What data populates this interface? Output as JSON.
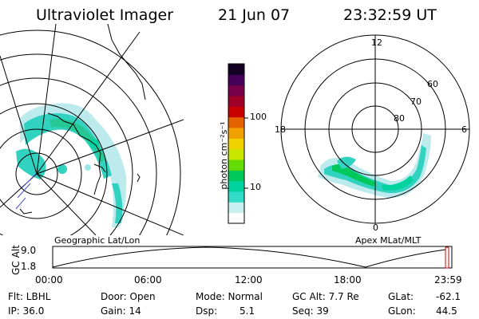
{
  "header": {
    "title": "Ultraviolet Imager",
    "date": "21 Jun 07",
    "time": "23:32:59 UT"
  },
  "geo_panel": {
    "label": "Geographic Lat/Lon"
  },
  "apex_panel": {
    "label": "Apex MLat/MLT",
    "mlt_labels": [
      "12",
      "18",
      "6",
      "0"
    ],
    "lat_labels": [
      "60",
      "70",
      "80"
    ]
  },
  "colorbar": {
    "label": "photon cm⁻²s⁻¹",
    "ticks": [
      "100",
      "10"
    ],
    "colors": [
      "#ffffff",
      "#c8f0f0",
      "#32dcc8",
      "#00d2a0",
      "#00c85a",
      "#64dc00",
      "#c8e600",
      "#f0d200",
      "#f0a000",
      "#e66400",
      "#c80000",
      "#a00028",
      "#78004b",
      "#46005a",
      "#140023"
    ]
  },
  "timeline": {
    "ylabel": "GC Alt",
    "y_ticks": [
      "9.0",
      "1.8"
    ],
    "x_ticks": [
      "00:00",
      "06:00",
      "12:00",
      "18:00",
      "23:59"
    ],
    "marker_color": "#dd0000"
  },
  "footer": {
    "flt": "Flt: LBHL",
    "ip": "IP: 36.0",
    "door": "Door: Open",
    "gain": "Gain: 14",
    "mode": "Mode: Normal",
    "dsp_label": "Dsp:",
    "dsp_value": "5.1",
    "gc_alt": "GC Alt: 7.7 Re",
    "seq": "Seq: 39",
    "glat_label": "GLat:",
    "glat_value": "-62.1",
    "glon_label": "GLon:",
    "glon_value": "44.5"
  }
}
